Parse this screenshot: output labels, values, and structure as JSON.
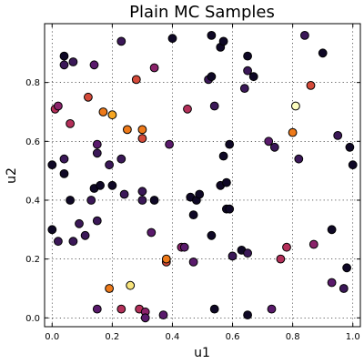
{
  "chart_data": {
    "type": "scatter",
    "title": "Plain MC Samples",
    "xlabel": "u1",
    "ylabel": "u2",
    "xlim": [
      -0.025,
      1.025
    ],
    "ylim": [
      -0.03,
      1.0
    ],
    "xticks": [
      0.0,
      0.2,
      0.4,
      0.6,
      0.8,
      1.0
    ],
    "xtick_labels": [
      "0.0",
      "0.2",
      "0.4",
      "0.6",
      "0.8",
      "1.0"
    ],
    "yticks": [
      0.0,
      0.2,
      0.4,
      0.6,
      0.8
    ],
    "ytick_labels": [
      "0.0",
      "0.2",
      "0.4",
      "0.6",
      "0.8"
    ],
    "grid": true,
    "colormap": "inferno",
    "colors": {
      "dark": "#0f0826",
      "deep_purple": "#3b1858",
      "purple": "#5a1a6c",
      "magenta": "#8a226a",
      "rose": "#b4305a",
      "red_orange": "#d44a3a",
      "orange": "#ee7a1a",
      "amber": "#f5a623",
      "yellow": "#f8e47c",
      "pale_yellow": "#fcfdbf"
    },
    "points": [
      {
        "x": 0.04,
        "y": 0.89,
        "c": "dark"
      },
      {
        "x": 0.04,
        "y": 0.86,
        "c": "deep_purple"
      },
      {
        "x": 0.07,
        "y": 0.87,
        "c": "deep_purple"
      },
      {
        "x": 0.14,
        "y": 0.86,
        "c": "purple"
      },
      {
        "x": 0.23,
        "y": 0.94,
        "c": "deep_purple"
      },
      {
        "x": 0.34,
        "y": 0.85,
        "c": "magenta"
      },
      {
        "x": 0.4,
        "y": 0.95,
        "c": "dark"
      },
      {
        "x": 0.53,
        "y": 0.96,
        "c": "dark"
      },
      {
        "x": 0.56,
        "y": 0.92,
        "c": "dark"
      },
      {
        "x": 0.57,
        "y": 0.94,
        "c": "dark"
      },
      {
        "x": 0.65,
        "y": 0.89,
        "c": "dark"
      },
      {
        "x": 0.84,
        "y": 0.96,
        "c": "deep_purple"
      },
      {
        "x": 0.9,
        "y": 0.9,
        "c": "dark"
      },
      {
        "x": 0.52,
        "y": 0.81,
        "c": "deep_purple"
      },
      {
        "x": 0.53,
        "y": 0.82,
        "c": "dark"
      },
      {
        "x": 0.65,
        "y": 0.84,
        "c": "deep_purple"
      },
      {
        "x": 0.67,
        "y": 0.82,
        "c": "dark"
      },
      {
        "x": 0.64,
        "y": 0.78,
        "c": "deep_purple"
      },
      {
        "x": 0.28,
        "y": 0.81,
        "c": "red_orange"
      },
      {
        "x": 0.86,
        "y": 0.79,
        "c": "red_orange"
      },
      {
        "x": 0.01,
        "y": 0.71,
        "c": "rose"
      },
      {
        "x": 0.02,
        "y": 0.72,
        "c": "magenta"
      },
      {
        "x": 0.06,
        "y": 0.66,
        "c": "rose"
      },
      {
        "x": 0.12,
        "y": 0.75,
        "c": "red_orange"
      },
      {
        "x": 0.17,
        "y": 0.7,
        "c": "orange"
      },
      {
        "x": 0.2,
        "y": 0.69,
        "c": "amber"
      },
      {
        "x": 0.25,
        "y": 0.64,
        "c": "orange"
      },
      {
        "x": 0.3,
        "y": 0.64,
        "c": "orange"
      },
      {
        "x": 0.3,
        "y": 0.61,
        "c": "red_orange"
      },
      {
        "x": 0.45,
        "y": 0.71,
        "c": "rose"
      },
      {
        "x": 0.54,
        "y": 0.72,
        "c": "deep_purple"
      },
      {
        "x": 0.81,
        "y": 0.72,
        "c": "pale_yellow"
      },
      {
        "x": 0.8,
        "y": 0.63,
        "c": "orange"
      },
      {
        "x": 0.95,
        "y": 0.62,
        "c": "deep_purple"
      },
      {
        "x": 0.72,
        "y": 0.6,
        "c": "purple"
      },
      {
        "x": 0.74,
        "y": 0.58,
        "c": "deep_purple"
      },
      {
        "x": 0.59,
        "y": 0.59,
        "c": "dark"
      },
      {
        "x": 0.57,
        "y": 0.55,
        "c": "dark"
      },
      {
        "x": 0.82,
        "y": 0.54,
        "c": "deep_purple"
      },
      {
        "x": 0.99,
        "y": 0.58,
        "c": "dark"
      },
      {
        "x": 1.0,
        "y": 0.52,
        "c": "dark"
      },
      {
        "x": 0.0,
        "y": 0.52,
        "c": "dark"
      },
      {
        "x": 0.04,
        "y": 0.54,
        "c": "deep_purple"
      },
      {
        "x": 0.04,
        "y": 0.49,
        "c": "dark"
      },
      {
        "x": 0.15,
        "y": 0.59,
        "c": "purple"
      },
      {
        "x": 0.15,
        "y": 0.56,
        "c": "deep_purple"
      },
      {
        "x": 0.19,
        "y": 0.52,
        "c": "deep_purple"
      },
      {
        "x": 0.23,
        "y": 0.54,
        "c": "deep_purple"
      },
      {
        "x": 0.39,
        "y": 0.59,
        "c": "purple"
      },
      {
        "x": 0.06,
        "y": 0.4,
        "c": "dark"
      },
      {
        "x": 0.13,
        "y": 0.4,
        "c": "deep_purple"
      },
      {
        "x": 0.14,
        "y": 0.44,
        "c": "dark"
      },
      {
        "x": 0.16,
        "y": 0.45,
        "c": "dark"
      },
      {
        "x": 0.2,
        "y": 0.45,
        "c": "dark"
      },
      {
        "x": 0.24,
        "y": 0.42,
        "c": "deep_purple"
      },
      {
        "x": 0.3,
        "y": 0.43,
        "c": "deep_purple"
      },
      {
        "x": 0.3,
        "y": 0.4,
        "c": "deep_purple"
      },
      {
        "x": 0.34,
        "y": 0.4,
        "c": "dark"
      },
      {
        "x": 0.46,
        "y": 0.41,
        "c": "dark"
      },
      {
        "x": 0.48,
        "y": 0.4,
        "c": "dark"
      },
      {
        "x": 0.49,
        "y": 0.42,
        "c": "dark"
      },
      {
        "x": 0.56,
        "y": 0.45,
        "c": "dark"
      },
      {
        "x": 0.58,
        "y": 0.46,
        "c": "dark"
      },
      {
        "x": 0.58,
        "y": 0.37,
        "c": "dark"
      },
      {
        "x": 0.59,
        "y": 0.37,
        "c": "dark"
      },
      {
        "x": 0.47,
        "y": 0.35,
        "c": "dark"
      },
      {
        "x": 0.0,
        "y": 0.3,
        "c": "dark"
      },
      {
        "x": 0.02,
        "y": 0.26,
        "c": "deep_purple"
      },
      {
        "x": 0.07,
        "y": 0.26,
        "c": "deep_purple"
      },
      {
        "x": 0.09,
        "y": 0.32,
        "c": "deep_purple"
      },
      {
        "x": 0.11,
        "y": 0.28,
        "c": "deep_purple"
      },
      {
        "x": 0.15,
        "y": 0.33,
        "c": "deep_purple"
      },
      {
        "x": 0.33,
        "y": 0.29,
        "c": "purple"
      },
      {
        "x": 0.38,
        "y": 0.19,
        "c": "red_orange"
      },
      {
        "x": 0.38,
        "y": 0.2,
        "c": "orange"
      },
      {
        "x": 0.43,
        "y": 0.24,
        "c": "magenta"
      },
      {
        "x": 0.44,
        "y": 0.24,
        "c": "purple"
      },
      {
        "x": 0.47,
        "y": 0.19,
        "c": "purple"
      },
      {
        "x": 0.53,
        "y": 0.28,
        "c": "dark"
      },
      {
        "x": 0.6,
        "y": 0.21,
        "c": "deep_purple"
      },
      {
        "x": 0.63,
        "y": 0.23,
        "c": "dark"
      },
      {
        "x": 0.65,
        "y": 0.22,
        "c": "deep_purple"
      },
      {
        "x": 0.76,
        "y": 0.2,
        "c": "rose"
      },
      {
        "x": 0.78,
        "y": 0.24,
        "c": "rose"
      },
      {
        "x": 0.87,
        "y": 0.25,
        "c": "magenta"
      },
      {
        "x": 0.93,
        "y": 0.3,
        "c": "dark"
      },
      {
        "x": 0.98,
        "y": 0.17,
        "c": "dark"
      },
      {
        "x": 0.19,
        "y": 0.1,
        "c": "orange"
      },
      {
        "x": 0.26,
        "y": 0.11,
        "c": "yellow"
      },
      {
        "x": 0.15,
        "y": 0.03,
        "c": "purple"
      },
      {
        "x": 0.23,
        "y": 0.03,
        "c": "rose"
      },
      {
        "x": 0.29,
        "y": 0.03,
        "c": "rose"
      },
      {
        "x": 0.31,
        "y": 0.02,
        "c": "magenta"
      },
      {
        "x": 0.31,
        "y": 0.0,
        "c": "purple"
      },
      {
        "x": 0.37,
        "y": 0.01,
        "c": "purple"
      },
      {
        "x": 0.54,
        "y": 0.03,
        "c": "dark"
      },
      {
        "x": 0.65,
        "y": 0.01,
        "c": "dark"
      },
      {
        "x": 0.73,
        "y": 0.03,
        "c": "purple"
      },
      {
        "x": 0.93,
        "y": 0.12,
        "c": "purple"
      },
      {
        "x": 0.97,
        "y": 0.1,
        "c": "deep_purple"
      }
    ]
  }
}
